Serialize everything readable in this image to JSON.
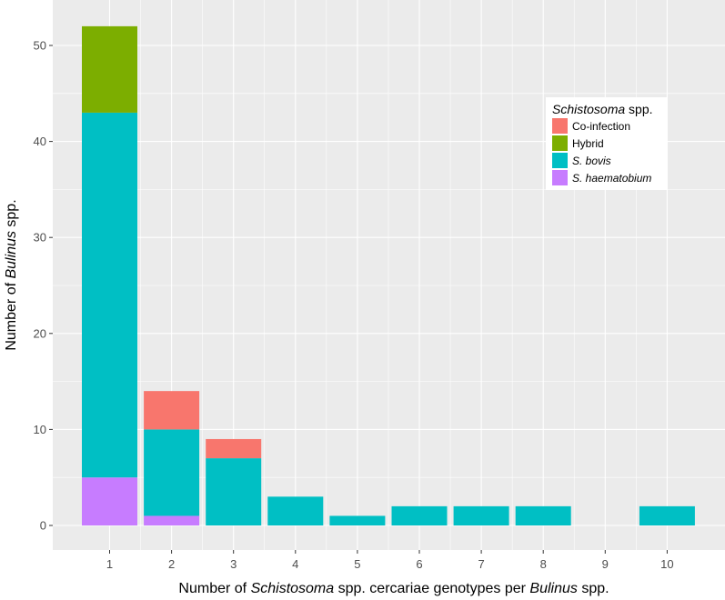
{
  "chart_data": {
    "type": "bar",
    "stacked": true,
    "categories": [
      "1",
      "2",
      "3",
      "4",
      "5",
      "6",
      "7",
      "8",
      "9",
      "10"
    ],
    "series": [
      {
        "name": "S. haematobium",
        "name_style": "italic",
        "color": "#C77CFF",
        "values": [
          5,
          1,
          0,
          0,
          0,
          0,
          0,
          0,
          0,
          0
        ]
      },
      {
        "name": "S. bovis",
        "name_style": "italic",
        "color": "#00BFC4",
        "values": [
          38,
          9,
          7,
          3,
          1,
          2,
          2,
          2,
          0,
          2
        ]
      },
      {
        "name": "Hybrid",
        "name_style": "normal",
        "color": "#7CAE00",
        "values": [
          9,
          0,
          0,
          0,
          0,
          0,
          0,
          0,
          0,
          0
        ]
      },
      {
        "name": "Co-infection",
        "name_style": "normal",
        "color": "#F8766D",
        "values": [
          0,
          4,
          2,
          0,
          0,
          0,
          0,
          0,
          0,
          0
        ]
      }
    ],
    "legend_order": [
      "Co-infection",
      "Hybrid",
      "S. bovis",
      "S. haematobium"
    ],
    "legend": {
      "title_parts": [
        {
          "text": "Schistosoma",
          "italic": true
        },
        {
          "text": " spp.",
          "italic": false
        }
      ],
      "placement": "top-right"
    },
    "xlabel_parts": [
      {
        "text": "Number of ",
        "italic": false
      },
      {
        "text": "Schistosoma",
        "italic": true
      },
      {
        "text": " spp. cercariae genotypes per ",
        "italic": false
      },
      {
        "text": "Bulinus",
        "italic": true
      },
      {
        "text": " spp.",
        "italic": false
      }
    ],
    "ylabel_parts": [
      {
        "text": "Number of ",
        "italic": false
      },
      {
        "text": "Bulinus",
        "italic": true
      },
      {
        "text": " spp.",
        "italic": false
      }
    ],
    "ylim": [
      0,
      55
    ],
    "yticks": [
      0,
      10,
      20,
      30,
      40,
      50
    ],
    "grid": true,
    "panel_background": "#EBEBEB",
    "grid_color": "#FFFFFF"
  }
}
